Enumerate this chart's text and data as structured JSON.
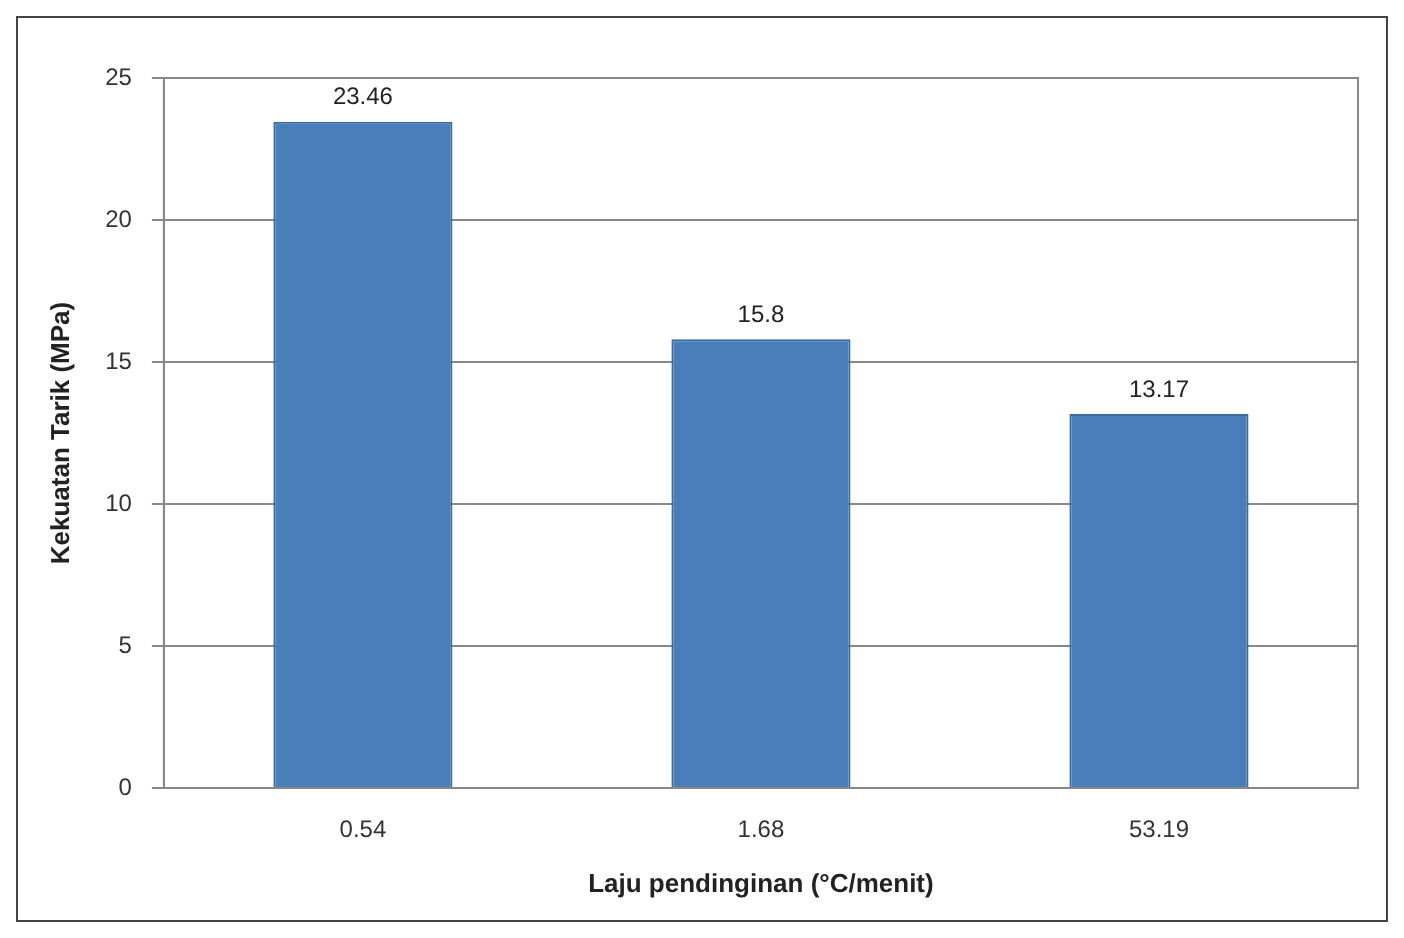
{
  "chart_data": {
    "type": "bar",
    "xlabel": "Laju pendinginan (°C/menit)",
    "ylabel": "Kekuatan Tarik (MPa)",
    "categories": [
      "0.54",
      "1.68",
      "53.19"
    ],
    "values": [
      23.46,
      15.8,
      13.17
    ],
    "color": "#4a7ebb",
    "ylim": [
      0,
      25
    ],
    "yticks": [
      0,
      5,
      10,
      15,
      20,
      25
    ],
    "grid": "y",
    "data_labels": true
  }
}
